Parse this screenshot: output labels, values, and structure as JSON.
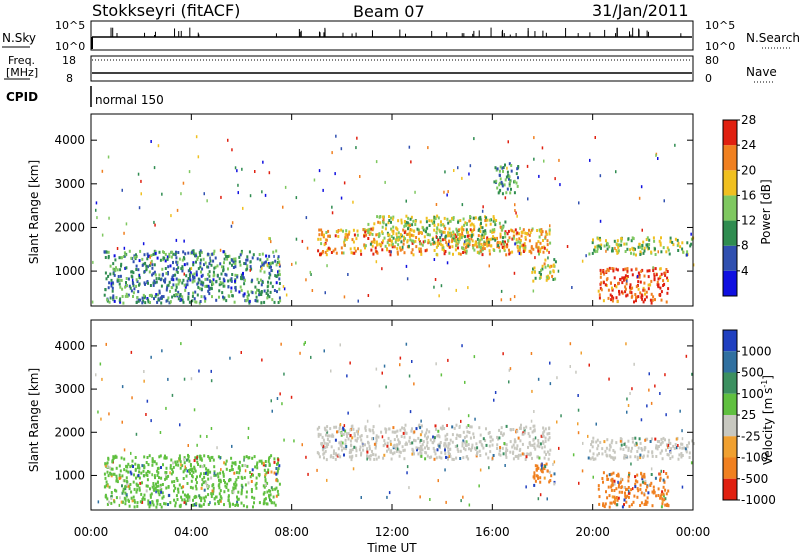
{
  "header": {
    "station": "Stokkseyri (fitACF)",
    "beam": "Beam 07",
    "date": "31/Jan/2011",
    "nsky_label": "N.Sky",
    "nsearch_label": "N.Search",
    "freq_label_1": "Freq.",
    "freq_label_2": "[MHz]",
    "nave_label": "Nave",
    "cpid_label": "CPID",
    "cpid_value": "normal 150",
    "sky_tick_top": "10^5",
    "sky_tick_bottom": "10^0",
    "freq_tick_top": "18",
    "freq_tick_bottom": "8",
    "nave_tick_top": "80",
    "nave_tick_bottom": "0"
  },
  "chart_data": [
    {
      "type": "heatmap",
      "panel": "power",
      "ylabel": "Slant Range [km]",
      "yticks": [
        "1000",
        "2000",
        "3000",
        "4000"
      ],
      "ylim": [
        200,
        4600
      ],
      "colorbar_label": "Power [dB]",
      "colorbar_ticks": [
        "4",
        "8",
        "12",
        "16",
        "20",
        "24",
        "28"
      ],
      "colorbar_colors": [
        "#1010e0",
        "#3050b0",
        "#2f8c50",
        "#7fc860",
        "#f0c020",
        "#f08020",
        "#e02010"
      ],
      "regions": [
        {
          "x": [
            9.0,
            18.3
          ],
          "y": [
            1400,
            2000
          ],
          "level": 0.75
        },
        {
          "x": [
            11.0,
            16.5
          ],
          "y": [
            1600,
            2300
          ],
          "level": 0.55
        },
        {
          "x": [
            17.5,
            18.5
          ],
          "y": [
            800,
            1300
          ],
          "level": 0.55
        },
        {
          "x": [
            19.8,
            24.0
          ],
          "y": [
            1400,
            1800
          ],
          "level": 0.5
        },
        {
          "x": [
            20.2,
            23.0
          ],
          "y": [
            300,
            1100
          ],
          "level": 0.95
        },
        {
          "x": [
            0.5,
            7.5
          ],
          "y": [
            300,
            1500
          ],
          "level": 0.3
        },
        {
          "x": [
            16.0,
            17.0
          ],
          "y": [
            2800,
            3500
          ],
          "level": 0.35
        }
      ]
    },
    {
      "type": "heatmap",
      "panel": "velocity",
      "ylabel": "Slant Range [km]",
      "xlabel": "Time UT",
      "yticks": [
        "1000",
        "2000",
        "3000",
        "4000"
      ],
      "ylim": [
        200,
        4600
      ],
      "xticks": [
        "00:00",
        "04:00",
        "08:00",
        "12:00",
        "16:00",
        "20:00",
        "00:00"
      ],
      "xlim": [
        0,
        24
      ],
      "colorbar_label": "Velocity [m s",
      "colorbar_label_sup": "-1",
      "colorbar_label_end": "]",
      "colorbar_ticks": [
        "1000",
        "500",
        "100",
        "25",
        "-25",
        "-100",
        "-500",
        "-1000"
      ],
      "colorbar_colors": [
        "#2040c0",
        "#3070a0",
        "#3c9060",
        "#60c040",
        "#c8c8c0",
        "#f0a030",
        "#f08020",
        "#e02010"
      ],
      "regions": [
        {
          "x": [
            9.0,
            18.3
          ],
          "y": [
            1400,
            2200
          ],
          "color": "#c8c8c0"
        },
        {
          "x": [
            17.5,
            18.5
          ],
          "y": [
            800,
            1300
          ],
          "color": "#f08020"
        },
        {
          "x": [
            19.8,
            24.0
          ],
          "y": [
            1400,
            1900
          ],
          "color": "#c8c8c0"
        },
        {
          "x": [
            20.2,
            23.0
          ],
          "y": [
            300,
            1100
          ],
          "color": "#f08020"
        },
        {
          "x": [
            0.5,
            7.5
          ],
          "y": [
            300,
            1500
          ],
          "color": "#60c040"
        }
      ]
    }
  ]
}
